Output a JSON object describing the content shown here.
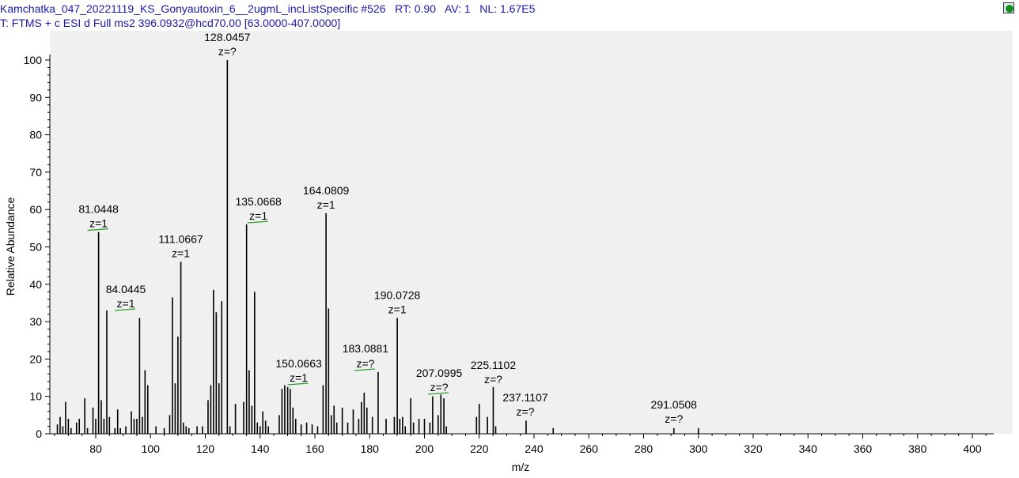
{
  "header": {
    "line1": "Kamchatka_047_20221119_KS_Gonyautoxin_6__2ugmL_incListSpecific #526   RT: 0.90   AV: 1   NL: 1.67E5",
    "line2": "T: FTMS + c ESI d Full ms2 396.0932@hcd70.00 [63.0000-407.0000]"
  },
  "icons": {
    "corner": "green-dot-icon"
  },
  "colors": {
    "header_text": "#1a1aa6",
    "plot_bg": "#f0f0f0",
    "peaks": "#000000",
    "charge_marker": "#2e9e2e"
  },
  "chart_data": {
    "type": "bar",
    "xlabel": "m/z",
    "ylabel": "Relative Abundance",
    "xlim": [
      63,
      407
    ],
    "ylim": [
      0,
      105
    ],
    "x_ticks": [
      80,
      100,
      120,
      140,
      160,
      180,
      200,
      220,
      240,
      260,
      280,
      300,
      320,
      340,
      360,
      380,
      400
    ],
    "y_ticks": [
      0,
      10,
      20,
      30,
      40,
      50,
      60,
      70,
      80,
      90,
      100
    ],
    "peaks": [
      [
        66.0,
        2.5
      ],
      [
        67.0,
        4.5
      ],
      [
        68.0,
        2.0
      ],
      [
        69.0,
        8.5
      ],
      [
        70.0,
        4.0
      ],
      [
        71.0,
        1.5
      ],
      [
        73.0,
        3.0
      ],
      [
        74.0,
        4.0
      ],
      [
        76.0,
        9.5
      ],
      [
        77.0,
        1.5
      ],
      [
        79.0,
        7.0
      ],
      [
        80.0,
        4.0
      ],
      [
        81.0448,
        54.0
      ],
      [
        82.0,
        9.0
      ],
      [
        83.0,
        4.0
      ],
      [
        84.0445,
        33.0
      ],
      [
        85.0,
        4.5
      ],
      [
        87.0,
        1.5
      ],
      [
        88.0,
        6.5
      ],
      [
        89.0,
        1.5
      ],
      [
        91.0,
        2.0
      ],
      [
        93.0,
        6.0
      ],
      [
        94.0,
        4.0
      ],
      [
        95.0,
        4.0
      ],
      [
        96.0,
        31.0
      ],
      [
        97.0,
        4.5
      ],
      [
        98.0,
        17.0
      ],
      [
        99.0,
        13.0
      ],
      [
        102.0,
        2.0
      ],
      [
        105.0,
        1.5
      ],
      [
        107.0,
        5.0
      ],
      [
        108.0,
        36.5
      ],
      [
        109.0,
        13.5
      ],
      [
        110.0,
        26.0
      ],
      [
        111.0667,
        46.0
      ],
      [
        112.0,
        3.0
      ],
      [
        113.0,
        2.0
      ],
      [
        114.0,
        1.5
      ],
      [
        117.0,
        2.0
      ],
      [
        119.0,
        2.0
      ],
      [
        121.0,
        9.0
      ],
      [
        122.0,
        13.0
      ],
      [
        123.0,
        38.5
      ],
      [
        124.0,
        32.5
      ],
      [
        125.0,
        13.5
      ],
      [
        126.0,
        35.5
      ],
      [
        128.0457,
        100.0
      ],
      [
        129.0,
        2.0
      ],
      [
        131.0,
        8.0
      ],
      [
        134.0,
        8.5
      ],
      [
        135.0668,
        56.0
      ],
      [
        136.0,
        17.0
      ],
      [
        137.0,
        7.5
      ],
      [
        138.0,
        38.0
      ],
      [
        139.0,
        3.0
      ],
      [
        140.0,
        2.0
      ],
      [
        141.0,
        6.0
      ],
      [
        142.0,
        3.5
      ],
      [
        143.0,
        2.0
      ],
      [
        147.0,
        5.0
      ],
      [
        148.0,
        12.0
      ],
      [
        149.0,
        13.0
      ],
      [
        150.0663,
        12.5
      ],
      [
        151.0,
        12.0
      ],
      [
        152.0,
        7.0
      ],
      [
        153.0,
        4.0
      ],
      [
        155.0,
        2.5
      ],
      [
        157.0,
        3.0
      ],
      [
        159.0,
        2.5
      ],
      [
        161.0,
        2.0
      ],
      [
        163.0,
        13.0
      ],
      [
        164.0809,
        59.0
      ],
      [
        165.0,
        33.5
      ],
      [
        166.0,
        5.0
      ],
      [
        167.0,
        7.5
      ],
      [
        168.0,
        3.0
      ],
      [
        170.0,
        7.0
      ],
      [
        172.0,
        3.0
      ],
      [
        174.0,
        6.5
      ],
      [
        176.0,
        4.0
      ],
      [
        177.0,
        8.5
      ],
      [
        178.0,
        11.0
      ],
      [
        179.0,
        7.0
      ],
      [
        181.0,
        4.5
      ],
      [
        183.0881,
        16.5
      ],
      [
        186.0,
        4.0
      ],
      [
        189.0,
        4.5
      ],
      [
        190.0728,
        31.0
      ],
      [
        191.0,
        4.0
      ],
      [
        192.0,
        4.5
      ],
      [
        193.0,
        2.0
      ],
      [
        195.0,
        9.5
      ],
      [
        196.0,
        3.0
      ],
      [
        198.0,
        4.0
      ],
      [
        200.0,
        4.0
      ],
      [
        202.0,
        3.0
      ],
      [
        203.0,
        10.0
      ],
      [
        205.0,
        5.0
      ],
      [
        206.0,
        10.5
      ],
      [
        207.0995,
        9.5
      ],
      [
        208.0,
        2.0
      ],
      [
        219.0,
        4.5
      ],
      [
        220.0,
        8.0
      ],
      [
        223.0,
        4.5
      ],
      [
        225.1102,
        12.5
      ],
      [
        226.0,
        2.0
      ],
      [
        237.1107,
        3.5
      ],
      [
        247.0,
        1.5
      ],
      [
        291.0508,
        1.5
      ],
      [
        300.0,
        1.5
      ]
    ],
    "annotations": [
      {
        "mz": "81.0448",
        "z": "z=1",
        "x": 81.0448,
        "y": 54.0,
        "marker": true
      },
      {
        "mz": "84.0445",
        "z": "z=1",
        "x": 84.0445,
        "y": 33.0,
        "marker": true
      },
      {
        "mz": "111.0667",
        "z": "z=1",
        "x": 111.0667,
        "y": 46.0,
        "marker": false
      },
      {
        "mz": "128.0457",
        "z": "z=?",
        "x": 128.0457,
        "y": 100.0,
        "marker": false
      },
      {
        "mz": "135.0668",
        "z": "z=1",
        "x": 135.0668,
        "y": 56.0,
        "marker": true
      },
      {
        "mz": "150.0663",
        "z": "z=1",
        "x": 150.0663,
        "y": 12.5,
        "marker": true
      },
      {
        "mz": "164.0809",
        "z": "z=1",
        "x": 164.0809,
        "y": 59.0,
        "marker": false
      },
      {
        "mz": "183.0881",
        "z": "z=?",
        "x": 183.0881,
        "y": 16.5,
        "marker": true
      },
      {
        "mz": "190.0728",
        "z": "z=1",
        "x": 190.0728,
        "y": 31.0,
        "marker": false
      },
      {
        "mz": "207.0995",
        "z": "z=?",
        "x": 207.0995,
        "y": 9.5,
        "marker": true
      },
      {
        "mz": "225.1102",
        "z": "z=?",
        "x": 225.1102,
        "y": 12.5,
        "marker": false
      },
      {
        "mz": "237.1107",
        "z": "z=?",
        "x": 237.1107,
        "y": 3.5,
        "marker": false
      },
      {
        "mz": "291.0508",
        "z": "z=?",
        "x": 291.0508,
        "y": 1.5,
        "marker": false
      }
    ]
  }
}
